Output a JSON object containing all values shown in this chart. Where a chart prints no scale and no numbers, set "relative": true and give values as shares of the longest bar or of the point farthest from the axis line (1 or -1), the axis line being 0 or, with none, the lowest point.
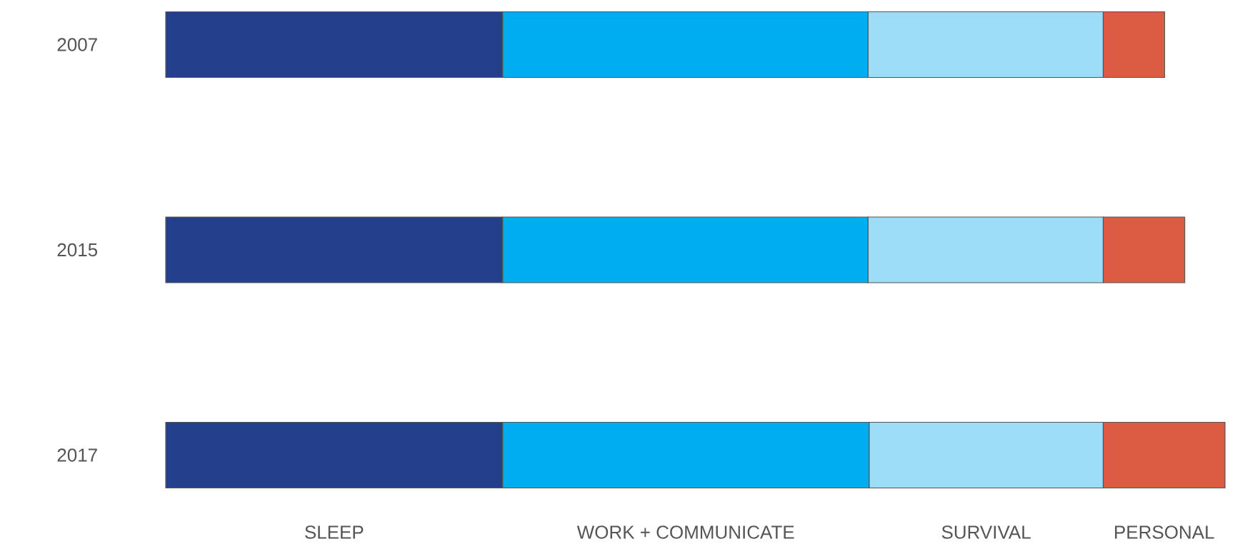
{
  "chart_data": {
    "type": "bar",
    "orientation": "horizontal",
    "stacked": true,
    "relative": true,
    "categories": [
      "2007",
      "2015",
      "2017"
    ],
    "series": [
      {
        "name": "SLEEP",
        "color": "#243f8c",
        "values": [
          0.318,
          0.318,
          0.318
        ]
      },
      {
        "name": "WORK + COMMUNICATE",
        "color": "#00aeef",
        "values": [
          0.345,
          0.345,
          0.346
        ]
      },
      {
        "name": "SURVIVAL",
        "color": "#9ddcf7",
        "values": [
          0.222,
          0.222,
          0.221
        ]
      },
      {
        "name": "PERSONAL",
        "color": "#dc5b43",
        "values": [
          0.058,
          0.077,
          0.115
        ]
      }
    ]
  }
}
